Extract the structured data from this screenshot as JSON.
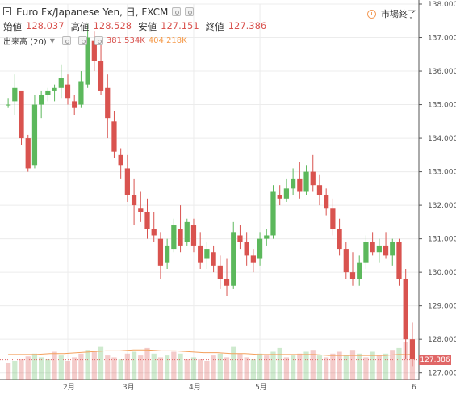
{
  "header": {
    "title": "Euro Fx/Japanese Yen, 日, FXCM",
    "ohlc": [
      {
        "label": "始値",
        "value": "128.037"
      },
      {
        "label": "高値",
        "value": "128.528"
      },
      {
        "label": "安値",
        "value": "127.151"
      },
      {
        "label": "終値",
        "value": "127.386"
      }
    ],
    "volume_label": "出来高 (20)",
    "volume_value": "381.534K",
    "volume_ma_value": "404.218K",
    "status": "市場終了"
  },
  "colors": {
    "up": "#5cb85c",
    "down": "#d9534f",
    "ma": "#f4a15d",
    "last_price_tag": "#e06666"
  },
  "chart_data": {
    "type": "candlestick",
    "y_ticks": [
      "138.000",
      "137.000",
      "136.000",
      "135.000",
      "134.000",
      "133.000",
      "132.000",
      "131.000",
      "130.000",
      "129.000",
      "128.000",
      "127.000"
    ],
    "ylim": [
      126.8,
      138.0
    ],
    "x_ticks": [
      "2月",
      "3月",
      "4月",
      "5月",
      "6"
    ],
    "last_price": "127.386",
    "candles": [
      [
        135.0,
        135.2,
        134.9,
        135.0
      ],
      [
        135.1,
        135.9,
        134.7,
        135.5
      ],
      [
        135.4,
        135.3,
        133.8,
        134.0
      ],
      [
        134.0,
        134.1,
        133.0,
        133.1
      ],
      [
        133.2,
        135.3,
        133.1,
        135.0
      ],
      [
        135.0,
        135.4,
        134.6,
        135.3
      ],
      [
        135.3,
        135.5,
        135.1,
        135.4
      ],
      [
        135.4,
        135.6,
        135.1,
        135.5
      ],
      [
        135.5,
        136.2,
        135.2,
        135.8
      ],
      [
        135.6,
        135.9,
        135.0,
        135.2
      ],
      [
        135.1,
        135.3,
        134.7,
        134.9
      ],
      [
        135.0,
        136.0,
        134.9,
        135.7
      ],
      [
        135.6,
        137.4,
        135.5,
        137.0
      ],
      [
        136.9,
        137.2,
        136.0,
        136.3
      ],
      [
        136.3,
        136.8,
        135.3,
        135.4
      ],
      [
        135.5,
        135.9,
        134.0,
        134.6
      ],
      [
        134.5,
        134.8,
        133.4,
        133.6
      ],
      [
        133.5,
        133.7,
        132.8,
        133.2
      ],
      [
        133.1,
        133.5,
        132.1,
        132.3
      ],
      [
        132.3,
        132.8,
        131.4,
        132.0
      ],
      [
        131.9,
        132.4,
        131.5,
        131.8
      ],
      [
        131.8,
        132.2,
        131.0,
        131.3
      ],
      [
        131.3,
        131.8,
        130.9,
        131.1
      ],
      [
        131.0,
        131.2,
        129.8,
        130.2
      ],
      [
        130.3,
        131.0,
        130.1,
        130.8
      ],
      [
        130.7,
        131.6,
        130.6,
        131.4
      ],
      [
        131.3,
        132.0,
        130.6,
        130.8
      ],
      [
        130.9,
        131.6,
        130.8,
        131.5
      ],
      [
        131.4,
        131.6,
        130.6,
        130.8
      ],
      [
        130.8,
        131.2,
        130.1,
        130.3
      ],
      [
        130.4,
        130.9,
        130.1,
        130.7
      ],
      [
        130.6,
        130.8,
        130.0,
        130.2
      ],
      [
        130.2,
        130.5,
        129.5,
        129.8
      ],
      [
        129.8,
        130.4,
        129.3,
        129.6
      ],
      [
        129.6,
        131.5,
        129.5,
        131.2
      ],
      [
        131.1,
        131.4,
        130.7,
        130.9
      ],
      [
        130.9,
        131.2,
        130.2,
        130.5
      ],
      [
        130.5,
        130.7,
        130.0,
        130.3
      ],
      [
        130.4,
        131.2,
        130.2,
        131.0
      ],
      [
        131.0,
        131.3,
        130.8,
        131.1
      ],
      [
        131.1,
        132.6,
        131.0,
        132.4
      ],
      [
        132.3,
        132.6,
        132.0,
        132.2
      ],
      [
        132.2,
        132.8,
        132.1,
        132.5
      ],
      [
        132.5,
        133.1,
        132.3,
        132.8
      ],
      [
        132.8,
        133.3,
        132.2,
        132.4
      ],
      [
        132.4,
        133.2,
        132.3,
        133.0
      ],
      [
        133.0,
        133.5,
        132.4,
        132.6
      ],
      [
        132.6,
        132.9,
        132.0,
        132.3
      ],
      [
        132.3,
        132.5,
        131.7,
        131.9
      ],
      [
        131.9,
        132.2,
        131.1,
        131.3
      ],
      [
        131.3,
        131.6,
        130.5,
        130.7
      ],
      [
        130.7,
        130.9,
        129.8,
        130.0
      ],
      [
        130.0,
        130.6,
        129.6,
        129.8
      ],
      [
        129.8,
        130.5,
        129.6,
        130.3
      ],
      [
        130.3,
        131.1,
        130.1,
        130.9
      ],
      [
        130.9,
        131.2,
        130.5,
        130.6
      ],
      [
        130.6,
        131.0,
        130.3,
        130.8
      ],
      [
        130.8,
        131.2,
        130.4,
        130.5
      ],
      [
        130.5,
        131.0,
        130.2,
        130.9
      ],
      [
        130.9,
        131.0,
        129.6,
        129.8
      ],
      [
        129.8,
        130.1,
        127.4,
        128.0
      ],
      [
        128.0,
        128.5,
        127.2,
        127.4
      ]
    ],
    "volume_ylim": [
      0,
      100
    ],
    "volumes": [
      [
        18,
        0
      ],
      [
        20,
        1
      ],
      [
        22,
        0
      ],
      [
        25,
        0
      ],
      [
        28,
        1
      ],
      [
        24,
        1
      ],
      [
        22,
        1
      ],
      [
        30,
        0
      ],
      [
        26,
        1
      ],
      [
        20,
        0
      ],
      [
        24,
        0
      ],
      [
        28,
        0
      ],
      [
        32,
        1
      ],
      [
        30,
        0
      ],
      [
        36,
        1
      ],
      [
        26,
        0
      ],
      [
        24,
        0
      ],
      [
        22,
        1
      ],
      [
        28,
        0
      ],
      [
        30,
        1
      ],
      [
        26,
        0
      ],
      [
        34,
        0
      ],
      [
        28,
        1
      ],
      [
        24,
        0
      ],
      [
        26,
        1
      ],
      [
        30,
        0
      ],
      [
        28,
        1
      ],
      [
        22,
        0
      ],
      [
        24,
        1
      ],
      [
        22,
        0
      ],
      [
        20,
        0
      ],
      [
        26,
        0
      ],
      [
        28,
        1
      ],
      [
        24,
        0
      ],
      [
        36,
        1
      ],
      [
        28,
        0
      ],
      [
        24,
        0
      ],
      [
        22,
        1
      ],
      [
        28,
        1
      ],
      [
        26,
        0
      ],
      [
        30,
        1
      ],
      [
        34,
        1
      ],
      [
        24,
        0
      ],
      [
        26,
        1
      ],
      [
        28,
        0
      ],
      [
        30,
        1
      ],
      [
        32,
        0
      ],
      [
        26,
        1
      ],
      [
        24,
        0
      ],
      [
        28,
        0
      ],
      [
        30,
        0
      ],
      [
        26,
        1
      ],
      [
        32,
        0
      ],
      [
        28,
        1
      ],
      [
        24,
        0
      ],
      [
        30,
        1
      ],
      [
        26,
        0
      ],
      [
        28,
        1
      ],
      [
        32,
        0
      ],
      [
        34,
        1
      ],
      [
        40,
        0
      ],
      [
        28,
        0
      ]
    ],
    "volume_ma": [
      27,
      27,
      27,
      28,
      28,
      29,
      30,
      31,
      31,
      32,
      32,
      31,
      31,
      30,
      29,
      29,
      28,
      28,
      27,
      27,
      27,
      27,
      27,
      26,
      26,
      26,
      26,
      26,
      27,
      27
    ]
  }
}
